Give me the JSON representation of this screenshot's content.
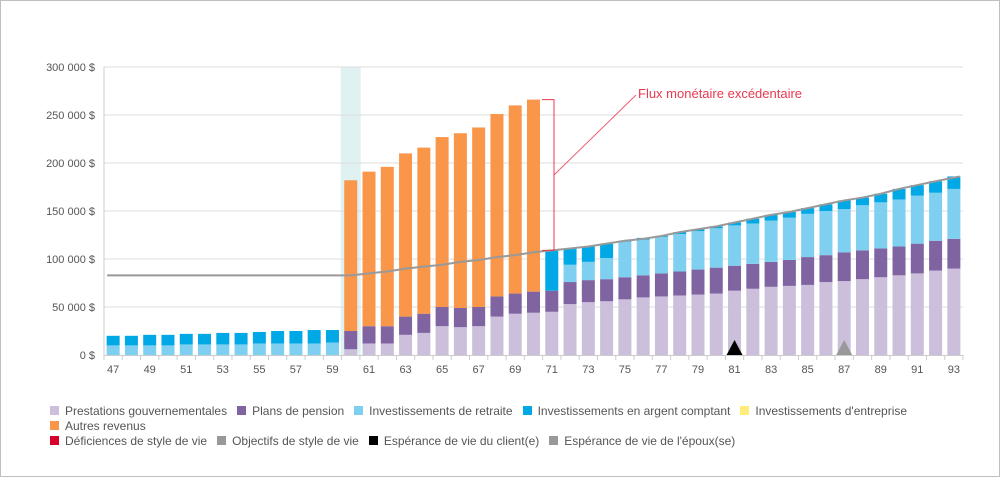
{
  "chart_data": {
    "type": "bar",
    "stacked": true,
    "title": "",
    "xlabel": "",
    "ylabel": "",
    "ylim": [
      0,
      300000
    ],
    "yticks": [
      "0 $",
      "50 000 $",
      "100 000 $",
      "150 000 $",
      "200 000 $",
      "250 000 $",
      "300 000 $"
    ],
    "ytick_values": [
      0,
      50000,
      100000,
      150000,
      200000,
      250000,
      300000
    ],
    "grid": true,
    "legend_position": "bottom",
    "categories": [
      47,
      48,
      49,
      50,
      51,
      52,
      53,
      54,
      55,
      56,
      57,
      58,
      59,
      60,
      61,
      62,
      63,
      64,
      65,
      66,
      67,
      68,
      69,
      70,
      71,
      72,
      73,
      74,
      75,
      76,
      77,
      78,
      79,
      80,
      81,
      82,
      83,
      84,
      85,
      86,
      87,
      88,
      89,
      90,
      91,
      92,
      93
    ],
    "xtick_labels": [
      "47",
      "49",
      "51",
      "53",
      "55",
      "57",
      "59",
      "61",
      "63",
      "65",
      "67",
      "69",
      "71",
      "73",
      "75",
      "77",
      "79",
      "81",
      "83",
      "85",
      "87",
      "89",
      "91",
      "93"
    ],
    "series": [
      {
        "name": "Prestations gouvernementales",
        "color": "#cbbfdb",
        "values": [
          0,
          0,
          0,
          0,
          0,
          0,
          0,
          0,
          0,
          0,
          0,
          0,
          0,
          6000,
          12000,
          12000,
          21000,
          23000,
          30000,
          29000,
          30000,
          40000,
          43000,
          44000,
          45000,
          53000,
          55000,
          56000,
          58000,
          60000,
          61000,
          62000,
          63000,
          64000,
          67000,
          69000,
          71000,
          72000,
          73000,
          76000,
          77000,
          79000,
          81000,
          83000,
          85000,
          88000,
          90000
        ]
      },
      {
        "name": "Plans de pension",
        "color": "#8064a2",
        "values": [
          0,
          0,
          0,
          0,
          0,
          0,
          0,
          0,
          0,
          0,
          0,
          0,
          0,
          19000,
          18000,
          18000,
          19000,
          20000,
          20000,
          20000,
          20000,
          21000,
          21000,
          22000,
          22000,
          23000,
          23000,
          23000,
          23000,
          23000,
          24000,
          25000,
          26000,
          27000,
          26000,
          26000,
          26000,
          27000,
          29000,
          28000,
          30000,
          30000,
          30000,
          30000,
          31000,
          31000,
          31000
        ]
      },
      {
        "name": "Investissements de retraite",
        "color": "#7fd0f0",
        "values": [
          10000,
          10000,
          10000,
          10000,
          11000,
          11000,
          11000,
          11000,
          12000,
          12000,
          12000,
          12000,
          13000,
          0,
          0,
          0,
          0,
          0,
          0,
          0,
          0,
          0,
          0,
          0,
          0,
          18000,
          19000,
          22000,
          37000,
          37000,
          38000,
          39000,
          40000,
          41000,
          42000,
          42000,
          43000,
          44000,
          45000,
          46000,
          45000,
          47000,
          48000,
          49000,
          50000,
          50000,
          52000
        ]
      },
      {
        "name": "Investissements en argent comptant",
        "color": "#00a9e6",
        "values": [
          10000,
          10000,
          11000,
          11000,
          11000,
          11000,
          12000,
          12000,
          12000,
          13000,
          13000,
          14000,
          13000,
          0,
          0,
          0,
          0,
          0,
          0,
          0,
          0,
          0,
          0,
          0,
          42000,
          17000,
          16000,
          15000,
          1000,
          2000,
          1000,
          2000,
          2000,
          2000,
          3000,
          5000,
          6000,
          6000,
          6000,
          7000,
          9000,
          8000,
          9000,
          11000,
          11000,
          12000,
          13000
        ]
      },
      {
        "name": "Investissements d'entreprise",
        "color": "#ffec7a",
        "values": [
          0,
          0,
          0,
          0,
          0,
          0,
          0,
          0,
          0,
          0,
          0,
          0,
          0,
          0,
          0,
          0,
          0,
          0,
          0,
          0,
          0,
          0,
          0,
          0,
          0,
          0,
          0,
          0,
          0,
          0,
          0,
          0,
          0,
          0,
          0,
          0,
          0,
          0,
          0,
          0,
          0,
          0,
          0,
          0,
          0,
          0,
          0
        ]
      },
      {
        "name": "Autres revenus",
        "color": "#f9964a",
        "values": [
          0,
          0,
          0,
          0,
          0,
          0,
          0,
          0,
          0,
          0,
          0,
          0,
          0,
          157000,
          161000,
          166000,
          170000,
          173000,
          177000,
          182000,
          187000,
          190000,
          196000,
          200000,
          0,
          0,
          0,
          0,
          0,
          0,
          0,
          0,
          0,
          0,
          0,
          0,
          0,
          0,
          0,
          0,
          0,
          0,
          0,
          0,
          0,
          0,
          0
        ]
      }
    ],
    "line_series": {
      "name": "Objectifs de style de vie",
      "color": "#999999",
      "values": [
        83000,
        83000,
        83000,
        83000,
        83000,
        83000,
        83000,
        83000,
        83000,
        83000,
        83000,
        83000,
        83000,
        83000,
        85000,
        87000,
        90000,
        92000,
        94000,
        97000,
        99000,
        102000,
        104000,
        107000,
        109000,
        111000,
        113000,
        116000,
        119000,
        121000,
        124000,
        128000,
        131000,
        134000,
        138000,
        142000,
        146000,
        149000,
        153000,
        157000,
        161000,
        164000,
        168000,
        173000,
        177000,
        181000,
        186000
      ]
    },
    "highlight_age": 60,
    "highlight_color": "#dff2f1",
    "markers": [
      {
        "name": "Espérance de vie du client(e)",
        "age": 81,
        "color": "#000000",
        "shape": "triangle"
      },
      {
        "name": "Espérance de vie de l'époux(se)",
        "age": 87,
        "color": "#999999",
        "shape": "triangle"
      }
    ],
    "annotation": {
      "text": "Flux monétaire excédentaire",
      "color": "#e8394f",
      "age": 70,
      "from": 109000,
      "to": 266000
    },
    "legend": [
      {
        "label": "Prestations gouvernementales",
        "color": "#cbbfdb"
      },
      {
        "label": "Plans de pension",
        "color": "#8064a2"
      },
      {
        "label": "Investissements de retraite",
        "color": "#7fd0f0"
      },
      {
        "label": "Investissements en argent comptant",
        "color": "#00a9e6"
      },
      {
        "label": "Investissements d'entreprise",
        "color": "#ffec7a"
      },
      {
        "label": "Autres revenus",
        "color": "#f9964a"
      },
      {
        "label": "Déficiences de style de vie",
        "color": "#d6002b"
      },
      {
        "label": "Objectifs de style de vie",
        "color": "#999999"
      },
      {
        "label": "Espérance de vie du client(e)",
        "color": "#000000"
      },
      {
        "label": "Espérance de vie de l'époux(se)",
        "color": "#999999"
      }
    ]
  }
}
